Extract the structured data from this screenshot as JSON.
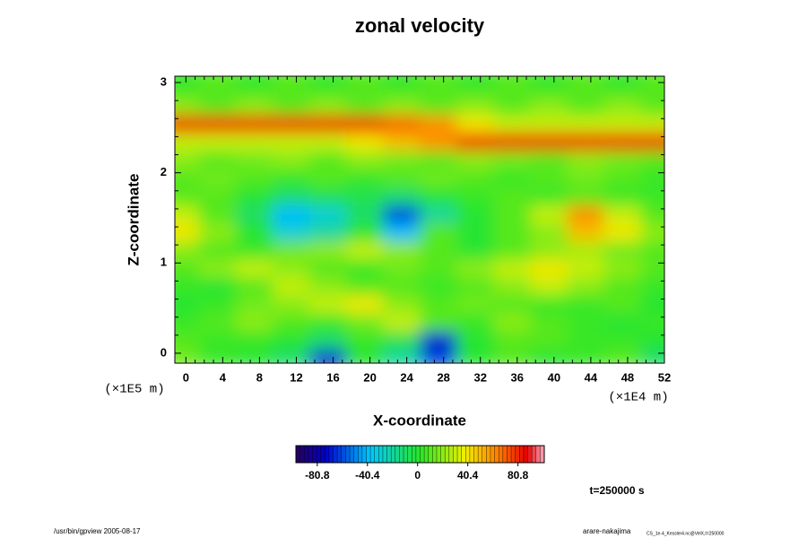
{
  "chart_data": {
    "type": "heatmap",
    "title": "zonal velocity",
    "xlabel": "X-coordinate",
    "ylabel": "Z-coordinate",
    "xscale_label": "(×1E4 m)",
    "yscale_label": "(×1E5 m)",
    "time_label": "t=250000 s",
    "footer_left": "/usr/bin/gpview 2005-08-17",
    "footer_right": "arare-nakajima",
    "footer_right_small": "CS_1e-4_Kessler4.nc@VelX,t=250000",
    "xlim": [
      -1.2,
      52
    ],
    "ylim": [
      -0.11,
      3.07
    ],
    "xticks": [
      0,
      4,
      8,
      12,
      16,
      20,
      24,
      28,
      32,
      36,
      40,
      44,
      48,
      52
    ],
    "yticks": [
      0,
      1,
      2,
      3
    ],
    "x": [
      0,
      4,
      8,
      12,
      16,
      20,
      24,
      28,
      32,
      36,
      40,
      44,
      48,
      52
    ],
    "y": [
      0,
      0.2,
      0.4,
      0.6,
      0.8,
      1.0,
      1.2,
      1.4,
      1.6,
      1.8,
      2.0,
      2.2,
      2.4,
      2.6,
      2.8,
      3.0
    ],
    "z": [
      [
        15,
        5,
        0,
        -10,
        -70,
        0,
        -20,
        -60,
        0,
        10,
        0,
        5,
        10,
        -10
      ],
      [
        10,
        5,
        5,
        0,
        -10,
        5,
        -5,
        -70,
        0,
        10,
        10,
        5,
        5,
        0
      ],
      [
        5,
        10,
        20,
        10,
        5,
        15,
        30,
        10,
        5,
        20,
        10,
        5,
        0,
        5
      ],
      [
        0,
        5,
        15,
        20,
        30,
        40,
        20,
        10,
        15,
        10,
        5,
        5,
        10,
        0
      ],
      [
        5,
        0,
        10,
        30,
        20,
        10,
        10,
        5,
        10,
        20,
        30,
        20,
        10,
        5
      ],
      [
        10,
        20,
        30,
        20,
        10,
        5,
        15,
        10,
        20,
        30,
        40,
        30,
        20,
        10
      ],
      [
        20,
        10,
        5,
        15,
        20,
        30,
        20,
        10,
        0,
        10,
        20,
        25,
        15,
        10
      ],
      [
        40,
        20,
        0,
        -30,
        -20,
        0,
        -40,
        10,
        0,
        10,
        20,
        50,
        40,
        20
      ],
      [
        30,
        10,
        -10,
        -40,
        -30,
        -10,
        -60,
        -20,
        0,
        10,
        30,
        60,
        30,
        10
      ],
      [
        10,
        10,
        0,
        -10,
        -5,
        -5,
        -10,
        0,
        5,
        10,
        5,
        10,
        5,
        5
      ],
      [
        10,
        15,
        10,
        5,
        10,
        5,
        10,
        15,
        10,
        5,
        10,
        15,
        10,
        5
      ],
      [
        20,
        10,
        15,
        20,
        10,
        20,
        15,
        10,
        20,
        15,
        10,
        20,
        15,
        10
      ],
      [
        30,
        30,
        30,
        30,
        30,
        40,
        50,
        60,
        80,
        80,
        80,
        80,
        80,
        80
      ],
      [
        80,
        80,
        80,
        80,
        80,
        80,
        70,
        60,
        40,
        30,
        30,
        30,
        30,
        30
      ],
      [
        20,
        10,
        20,
        10,
        20,
        10,
        20,
        10,
        20,
        10,
        20,
        10,
        20,
        10
      ],
      [
        5,
        10,
        5,
        10,
        5,
        10,
        5,
        10,
        5,
        10,
        5,
        10,
        5,
        10
      ]
    ],
    "zlim": [
      -98,
      102
    ],
    "zticks": [
      -80.8,
      -40.4,
      0,
      40.4,
      80.8
    ]
  }
}
